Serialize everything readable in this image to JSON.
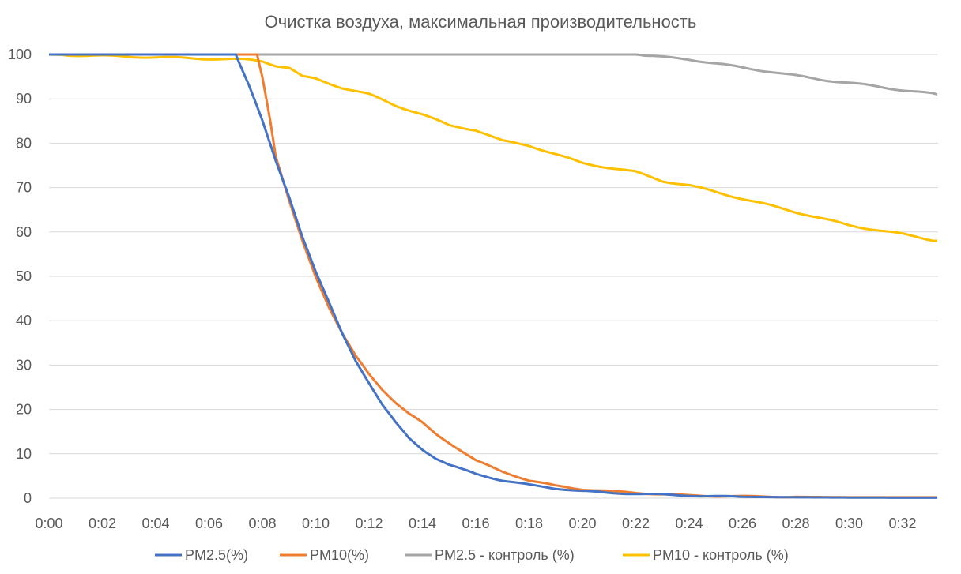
{
  "chart_data": {
    "type": "line",
    "title": "Очистка воздуха, максимальная производительность",
    "xlabel": "",
    "ylabel": "",
    "ylim": [
      0,
      100
    ],
    "xlim": [
      0,
      33.3
    ],
    "x_unit": "minutes",
    "y_ticks": [
      "0",
      "10",
      "20",
      "30",
      "40",
      "50",
      "60",
      "70",
      "80",
      "90",
      "100"
    ],
    "x_ticks": [
      "0:00",
      "0:02",
      "0:04",
      "0:06",
      "0:08",
      "0:10",
      "0:12",
      "0:14",
      "0:16",
      "0:18",
      "0:20",
      "0:22",
      "0:24",
      "0:26",
      "0:28",
      "0:30",
      "0:32"
    ],
    "grid": true,
    "legend_position": "bottom",
    "series": [
      {
        "name": "PM2.5(%)",
        "color": "#4472C4",
        "x": [
          0,
          7.0,
          7.5,
          8.0,
          8.5,
          9.0,
          9.5,
          10.0,
          10.5,
          11.0,
          11.5,
          12.0,
          12.5,
          13.0,
          13.5,
          14.0,
          14.5,
          15.0,
          15.5,
          16.0,
          17.0,
          18.0,
          19.0,
          20.0,
          21.0,
          22.0,
          23.0,
          24.0,
          25.0,
          26.0,
          28.0,
          30.0,
          32.0,
          33.3
        ],
        "y": [
          100,
          100,
          93,
          85,
          76,
          68,
          59,
          51,
          44,
          37,
          31,
          26,
          21,
          17,
          13.5,
          11,
          9,
          7.5,
          6.5,
          5.5,
          4,
          3,
          2.2,
          1.6,
          1.2,
          1.0,
          0.8,
          0.6,
          0.4,
          0.3,
          0.2,
          0.15,
          0.1,
          0.1
        ]
      },
      {
        "name": "PM10(%)",
        "color": "#ED7D31",
        "x": [
          0,
          7.8,
          8.0,
          8.3,
          8.5,
          8.8,
          9.0,
          9.5,
          10.0,
          10.5,
          11.0,
          11.5,
          12.0,
          12.5,
          13.0,
          13.5,
          14.0,
          14.5,
          15.0,
          15.5,
          16.0,
          17.0,
          18.0,
          19.0,
          20.0,
          21.0,
          22.0,
          23.0,
          24.0,
          25.0,
          26.0,
          28.0,
          30.0,
          32.0,
          33.3
        ],
        "y": [
          100,
          100,
          95,
          85,
          77,
          71,
          67,
          58,
          50,
          43,
          37,
          32,
          28,
          24.5,
          21.5,
          19,
          17,
          14.5,
          12.5,
          10.5,
          8.5,
          6,
          4,
          2.8,
          2.0,
          1.6,
          1.2,
          0.9,
          0.6,
          0.5,
          0.4,
          0.3,
          0.2,
          0.2,
          0.2
        ]
      },
      {
        "name": "PM2.5 - контроль (%)",
        "color": "#A5A5A5",
        "x": [
          0,
          22.0,
          23.0,
          24.0,
          25.0,
          26.0,
          27.0,
          28.0,
          29.0,
          30.0,
          31.0,
          32.0,
          33.3
        ],
        "y": [
          100,
          100,
          99.4,
          98.9,
          98.0,
          97.0,
          96.2,
          95.2,
          94.3,
          93.6,
          92.8,
          92.0,
          91.0
        ]
      },
      {
        "name": "PM10 - контроль (%)",
        "color": "#FFC000",
        "x": [
          0,
          7.5,
          8.0,
          8.5,
          9.0,
          9.5,
          10.0,
          11.0,
          12.0,
          13.0,
          14.0,
          15.0,
          16.0,
          17.0,
          18.0,
          19.0,
          20.0,
          21.0,
          22.0,
          23.0,
          24.0,
          25.0,
          26.0,
          27.0,
          28.0,
          29.0,
          30.0,
          31.0,
          32.0,
          33.3
        ],
        "y": [
          100,
          98.8,
          98.5,
          97.5,
          97.0,
          95.0,
          94.5,
          92.5,
          91.0,
          88.5,
          86.5,
          84.0,
          83.0,
          80.5,
          79.5,
          77.5,
          75.5,
          74.5,
          73.5,
          71.5,
          70.5,
          69.0,
          67.5,
          66.0,
          64.5,
          63.0,
          61.5,
          60.5,
          59.5,
          58.0
        ]
      }
    ]
  }
}
